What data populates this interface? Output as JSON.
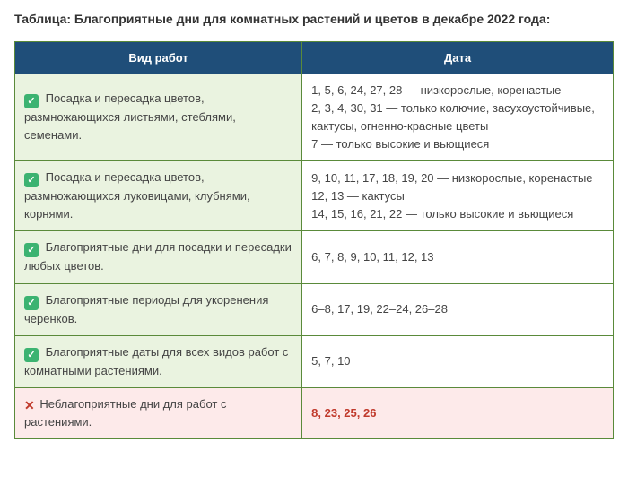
{
  "title": "Таблица: Благоприятные дни для комнатных растений и цветов в декабре 2022 года:",
  "headers": {
    "work": "Вид работ",
    "date": "Дата"
  },
  "colors": {
    "header_bg": "#1f4e79",
    "header_fg": "#ffffff",
    "border": "#5a8a3a",
    "good_bg": "#eaf3e0",
    "bad_bg": "#fdeaea",
    "bad_fg": "#c0392b",
    "check_bg": "#3cb371",
    "text": "#444444"
  },
  "rows": [
    {
      "icon": "check",
      "work": "Посадка и пересадка цветов, размножающихся листьями, стеблями, семенами.",
      "date": "1, 5, 6, 24, 27, 28 — низкорослые, коренастые\n2, 3, 4, 30, 31 — только колючие, засухоустойчивые, кактусы, огненно-красные цветы\n7 — только высокие и вьющиеся"
    },
    {
      "icon": "check",
      "work": "Посадка и пересадка цветов, размножающихся луковицами, клубнями, корнями.",
      "date": "9, 10, 11, 17, 18, 19, 20 — низкорослые, коренастые\n12, 13 — кактусы\n14, 15, 16, 21, 22 — только высокие и вьющиеся"
    },
    {
      "icon": "check",
      "work": "Благоприятные дни для посадки и пересадки любых цветов.",
      "date": "6, 7, 8, 9, 10, 11, 12, 13"
    },
    {
      "icon": "check",
      "work": "Благоприятные периоды для укоренения черенков.",
      "date": "6–8, 17, 19, 22–24, 26–28"
    },
    {
      "icon": "check",
      "work": "Благоприятные даты для всех видов работ с комнатными растениями.",
      "date": "5, 7, 10"
    },
    {
      "icon": "cross",
      "work": "Неблагоприятные дни для работ с растениями.",
      "date": "8, 23, 25, 26"
    }
  ]
}
